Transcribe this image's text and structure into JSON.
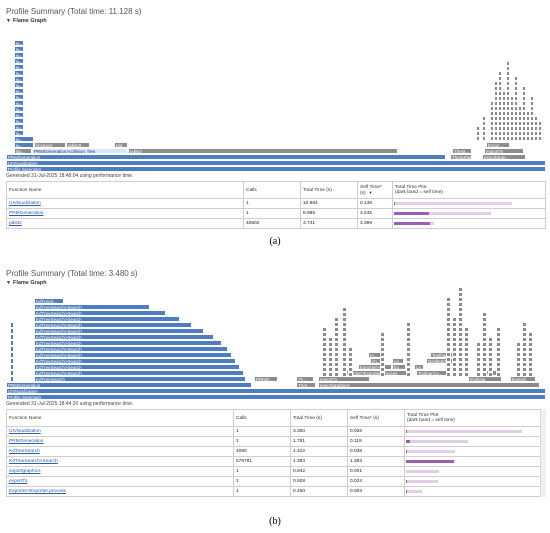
{
  "panel_a": {
    "title": "Profile Summary (Total time: 11.128 s)",
    "flame_header": "Flame Graph",
    "generated": "Generated 31-Jul-2025 18:48:04 using performance time.",
    "columns": [
      "Function Name",
      "Calls",
      "Total Time (s)",
      "Self Time* (s)",
      "Total Time Plot\n(dark band = self time)"
    ],
    "rows": [
      {
        "name": "UIVisualization",
        "calls": "1",
        "total": "10.984",
        "self": "0.136",
        "total_frac": 1.0,
        "self_frac": 0.012
      },
      {
        "name": "PRMGeneration",
        "calls": "1",
        "total": "8.985",
        "self": "3.245",
        "total_frac": 0.818,
        "self_frac": 0.295
      },
      {
        "name": "pdist2",
        "calls": "40602",
        "total": "3.741",
        "self": "3.399",
        "total_frac": 0.341,
        "self_frac": 0.309
      }
    ],
    "labels": {
      "profile_summary": "Profile Summary",
      "uiviz": "UIVisualization",
      "prmgen": "PRMGeneration",
      "prm_collision": "PRMGeneration>collision_free",
      "pdist2": "pdist2",
      "par": "par...",
      "linspace": "linspace",
      "pdist2_trunc": "pdist2t...",
      "bu": "Bu...",
      "theta": "Theta...",
      "thetastar": "ThetaStar",
      "exportto": "exportTo",
      "exportgrap": "exportgrap...",
      "expor": "Expor..."
    }
  },
  "panel_b": {
    "title": "Profile Summary (Total time: 3.480 s)",
    "flame_header": "Flame Graph",
    "generated": "Generated 31-Jul-2025 18:44:20 using performance time.",
    "columns": [
      "Function Name",
      "Calls",
      "Total Time (s)",
      "Self Time* (s)",
      "Total Time Plot\n(dark band = self time)"
    ],
    "rows": [
      {
        "name": "UIVisualization",
        "calls": "1",
        "total": "3.350",
        "self": "0.026",
        "total_frac": 1.0,
        "self_frac": 0.008
      },
      {
        "name": "PRMGeneration",
        "calls": "1",
        "total": "1.781",
        "self": "0.119",
        "total_frac": 0.532,
        "self_frac": 0.036
      },
      {
        "name": "KdTreeSearch",
        "calls": "4080",
        "total": "1.422",
        "self": "0.038",
        "total_frac": 0.424,
        "self_frac": 0.011
      },
      {
        "name": "KdTreeSearch>Search",
        "calls": "579781",
        "total": "1.383",
        "self": "1.383",
        "total_frac": 0.413,
        "self_frac": 0.413
      },
      {
        "name": "exportgraphics",
        "calls": "1",
        "total": "0.942",
        "self": "0.001",
        "total_frac": 0.281,
        "self_frac": 0.0
      },
      {
        "name": "exportTo",
        "calls": "1",
        "total": "0.928",
        "self": "0.024",
        "total_frac": 0.277,
        "self_frac": 0.007
      },
      {
        "name": "Exporter>Exporter.process",
        "calls": "1",
        "total": "0.450",
        "self": "0.003",
        "total_frac": 0.134,
        "self_frac": 0.001
      }
    ],
    "labels": {
      "profile_summary": "Profile Summary",
      "uiviz": "UIVisualization",
      "prmgen": "PRMGeneration",
      "kdsearch": "KdTreeSearch",
      "kdsearch_search": "KdTreeSearch>Search",
      "kdtree": "KdTreeS...",
      "prmg_trunc": "PRMG...",
      "th": "Th...",
      "thet": "Thet...",
      "exportto": "exportTo",
      "exportgraphics": "exportgraphics",
      "exporter_process": "Exporter>Exporter.process",
      "exporter_e": "Exporter>E...",
      "ex": "Ex...",
      "desktopto": "DesktopTo...",
      "toolbar": "Toolbar...",
      "toolbarco": "ToolbarCo...",
      "le": "Le...",
      "imshow": "imshow",
      "legend": "legend",
      "init": "init...",
      "m": "m...",
      "im": "im...",
      "ca": "ca..."
    }
  },
  "captions": {
    "a": "(a)",
    "b": "(b)"
  },
  "colors": {
    "flame_blue": "#4f7ec0",
    "flame_grey": "#8c8c8c",
    "self_dark": "#9b5fb3",
    "total_light": "#e3cdea",
    "link": "#2b5ea8"
  }
}
